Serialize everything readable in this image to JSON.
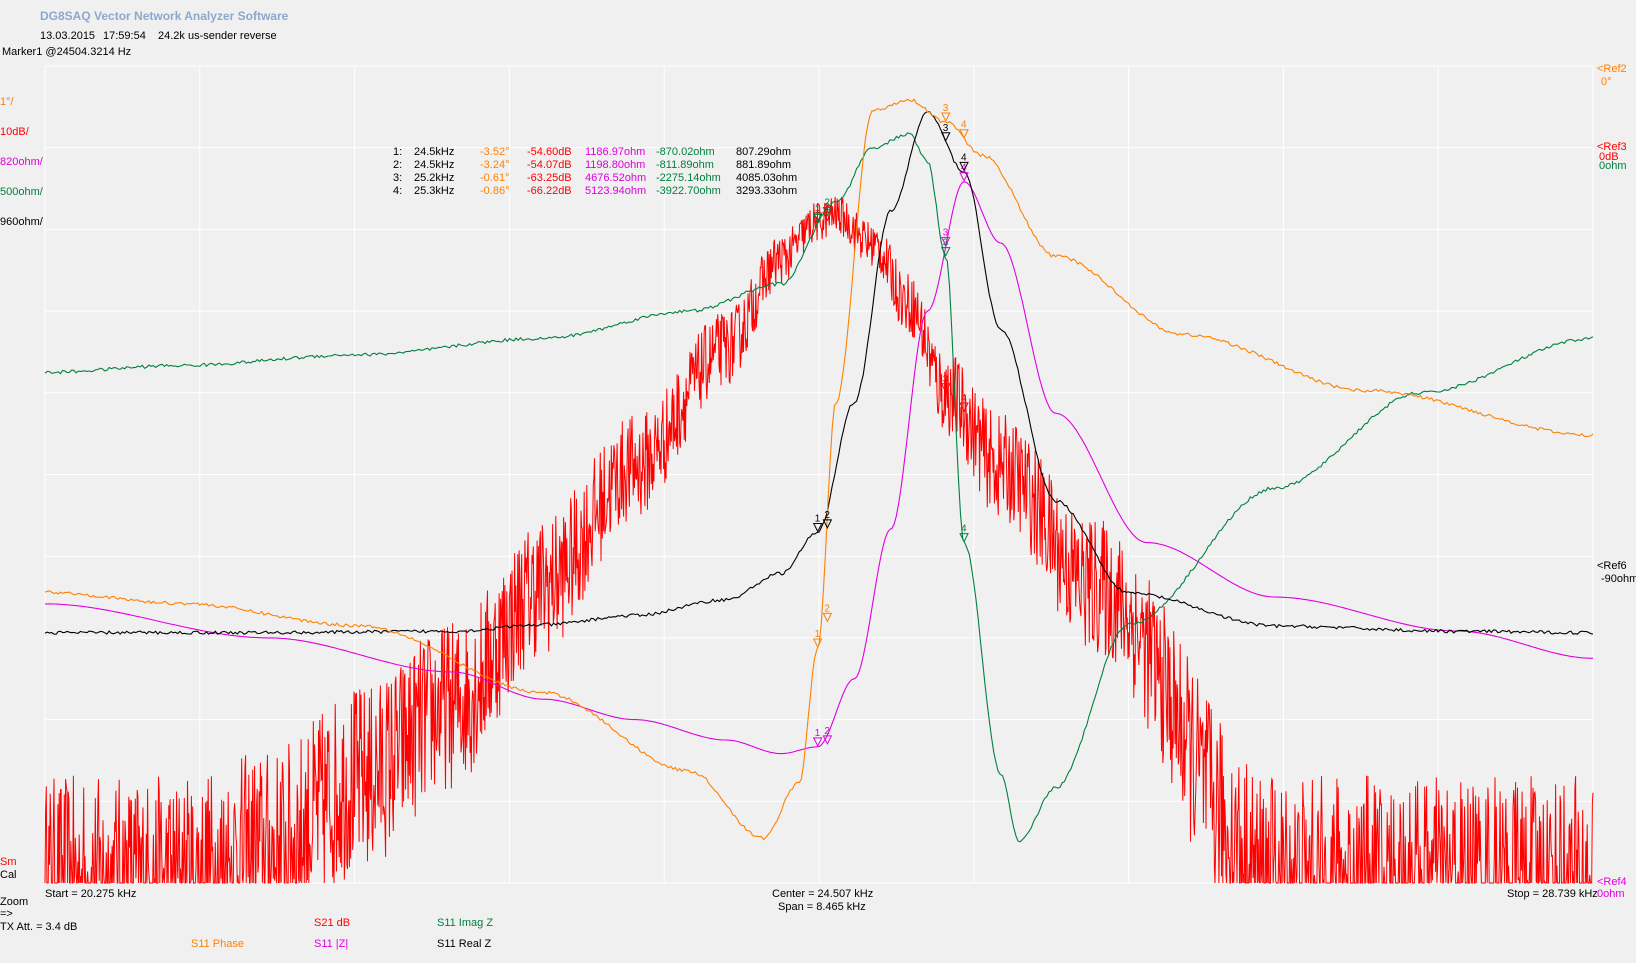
{
  "header": {
    "app_title": "DG8SAQ Vector Network Analyzer Software",
    "date": "13.03.2015",
    "time": "17:59:54",
    "description": "24.2k us-sender reverse",
    "marker_readout": "Marker1 @24504.3214 Hz"
  },
  "scales": {
    "phase": "1°/",
    "db": "10dB/",
    "z_abs": "820ohm/",
    "z_imag": "500ohm/",
    "z_real": "960ohm/"
  },
  "refs": {
    "ref2_name": "<Ref2",
    "ref2_value": "0°",
    "ref_stack_1": "<Ref3",
    "ref_stack_2": "0dB",
    "ref_stack_3": "0ohm",
    "ref6_name": "<Ref6",
    "ref6_value": "-90ohm",
    "ref4_name": "<Ref4",
    "ref4_value": "0ohm"
  },
  "markers_table": [
    {
      "id": "1:",
      "freq": "24.5kHz",
      "phase": "-3.52°",
      "db": "-54.60dB",
      "zabs": "1186.97ohm",
      "imag": "-870.02ohm",
      "real": "807.29ohm"
    },
    {
      "id": "2:",
      "freq": "24.5kHz",
      "phase": "-3.24°",
      "db": "-54.07dB",
      "zabs": "1198.80ohm",
      "imag": "-811.89ohm",
      "real": "881.89ohm"
    },
    {
      "id": "3:",
      "freq": "25.2kHz",
      "phase": "-0.61°",
      "db": "-63.25dB",
      "zabs": "4676.52ohm",
      "imag": "-2275.14ohm",
      "real": "4085.03ohm"
    },
    {
      "id": "4:",
      "freq": "25.3kHz",
      "phase": "-0.86°",
      "db": "-66.22dB",
      "zabs": "5123.94ohm",
      "imag": "-3922.70ohm",
      "real": "3293.33ohm"
    }
  ],
  "footer": {
    "start": "Start = 20.275 kHz",
    "center": "Center = 24.507 kHz",
    "span": "Span = 8.465 kHz",
    "stop": "Stop = 28.739 kHz",
    "sm": "Sm",
    "cal": "Cal",
    "zoom": "Zoom",
    "arrow": "=>",
    "tx_att": "TX Att.  = 3.4 dB"
  },
  "legend": [
    {
      "label": "S11  Phase",
      "color": "#ff8000"
    },
    {
      "label": "S21  dB",
      "color": "#ff0000"
    },
    {
      "label": "S11  |Z|",
      "color": "#e000e0"
    },
    {
      "label": "S11  Imag Z",
      "color": "#008040"
    },
    {
      "label": "S11  Real Z",
      "color": "#000000"
    }
  ],
  "chart_data": {
    "type": "line",
    "x_unit": "kHz",
    "xlim": [
      20.275,
      28.739
    ],
    "grid": true,
    "series": [
      {
        "name": "S11  Phase",
        "color": "#ff8000",
        "x": [
          20.275,
          21.0,
          22.0,
          23.0,
          23.8,
          24.2,
          24.4,
          24.5,
          24.6,
          24.8,
          25.0,
          25.2,
          25.4,
          25.8,
          26.5,
          27.5,
          28.739
        ],
        "y": [
          -4.9,
          -5.0,
          -5.2,
          -5.8,
          -6.5,
          -7.1,
          -6.6,
          -5.4,
          -3.2,
          -0.6,
          -0.5,
          -0.7,
          -1.0,
          -1.9,
          -2.6,
          -3.1,
          -3.5
        ]
      },
      {
        "name": "S21  dB",
        "color": "#ff0000",
        "x": [
          20.275,
          21.0,
          21.5,
          22.0,
          22.5,
          23.0,
          23.5,
          24.0,
          24.3,
          24.5,
          24.6,
          24.8,
          25.0,
          25.2,
          25.5,
          26.0,
          27.0,
          28.739
        ],
        "y": [
          -100,
          -100,
          -98,
          -93,
          -88,
          -80,
          -72,
          -64,
          -58,
          -55.5,
          -55,
          -57,
          -61,
          -67,
          -72,
          -80,
          -100,
          -100
        ]
      },
      {
        "name": "S11  |Z|",
        "color": "#e000e0",
        "x": [
          20.275,
          21.5,
          22.5,
          23.0,
          23.5,
          24.0,
          24.3,
          24.5,
          24.7,
          24.9,
          25.1,
          25.3,
          25.5,
          25.8,
          26.3,
          27.0,
          28.0,
          28.739
        ],
        "y": [
          2050,
          1800,
          1550,
          1350,
          1200,
          1050,
          950,
          1000,
          1500,
          2600,
          4200,
          5150,
          4700,
          3450,
          2500,
          2100,
          1850,
          1650
        ]
      },
      {
        "name": "S11  Imag Z",
        "color": "#008040",
        "x": [
          20.275,
          21.0,
          22.0,
          23.0,
          23.8,
          24.3,
          24.6,
          24.8,
          25.0,
          25.1,
          25.2,
          25.3,
          25.5,
          25.6,
          25.8,
          26.2,
          27.0,
          27.8,
          28.739
        ],
        "y": [
          -750,
          -700,
          -620,
          -500,
          -300,
          -100,
          500,
          900,
          1000,
          800,
          100,
          -2000,
          -3700,
          -4200,
          -3800,
          -2600,
          -1600,
          -900,
          -500
        ]
      },
      {
        "name": "S11  Real Z",
        "color": "#000000",
        "x": [
          20.275,
          21.5,
          22.5,
          23.0,
          23.5,
          24.0,
          24.3,
          24.5,
          24.7,
          24.9,
          25.1,
          25.3,
          25.5,
          25.8,
          26.2,
          27.0,
          28.0,
          28.739
        ],
        "y": [
          0,
          0,
          10,
          60,
          130,
          250,
          450,
          760,
          1750,
          3200,
          3950,
          3500,
          2300,
          1000,
          300,
          50,
          10,
          0
        ]
      }
    ]
  }
}
